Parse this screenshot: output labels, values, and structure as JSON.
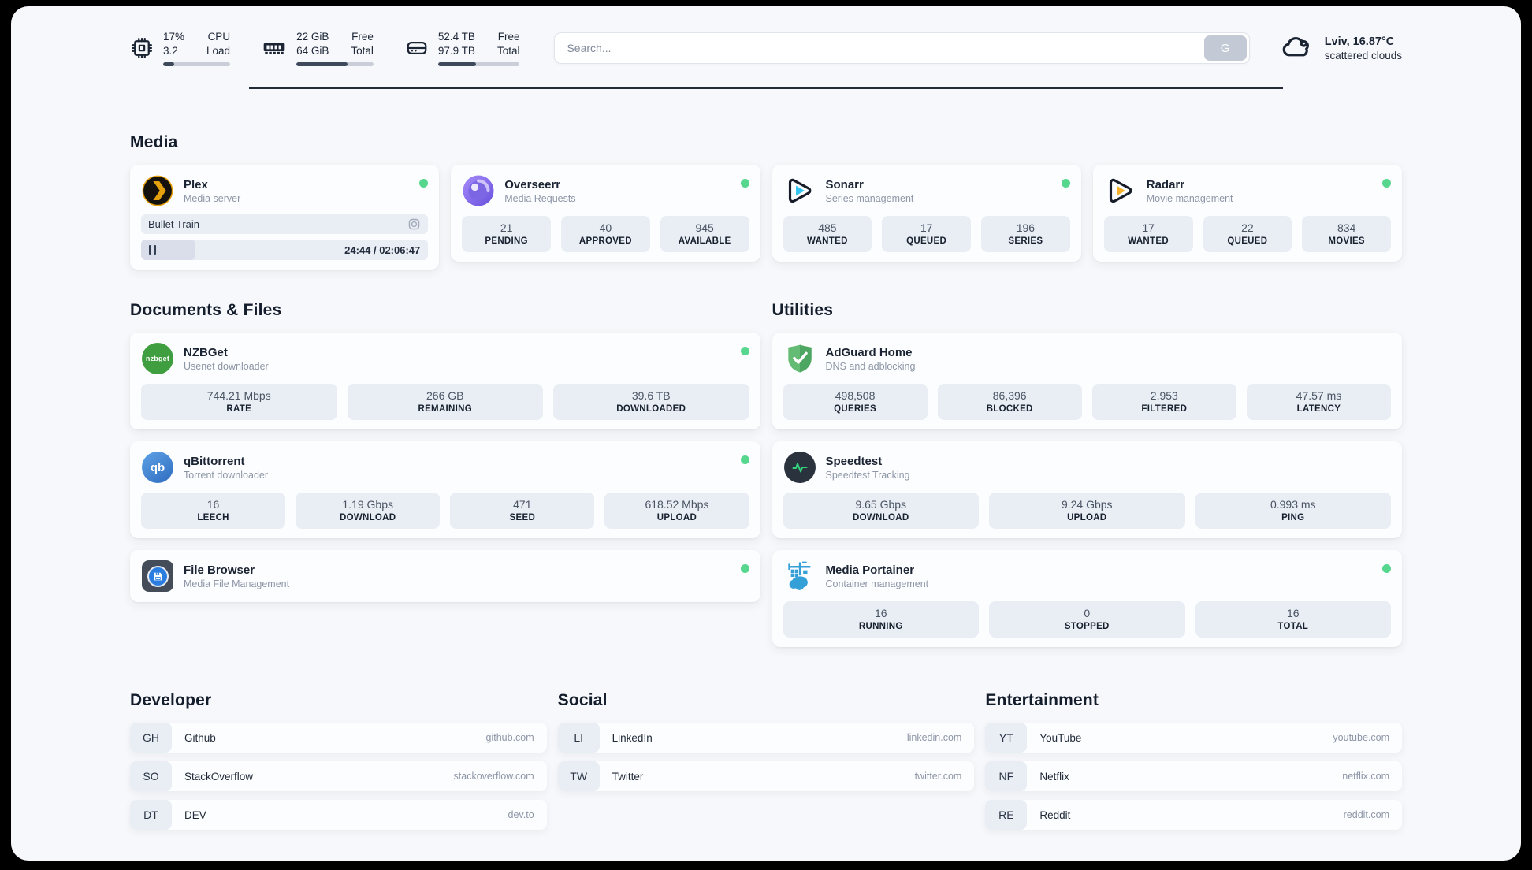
{
  "colors": {
    "status_online": "#57d78e",
    "progress_dark": "#3e4a5b",
    "accent_amber": "#e5a00d"
  },
  "header": {
    "metrics": [
      {
        "icon": "cpu-icon",
        "left_top": "17%",
        "left_bottom": "3.2",
        "right_top": "CPU",
        "right_bottom": "Load",
        "progress": 17
      },
      {
        "icon": "ram-icon",
        "left_top": "22 GiB",
        "left_bottom": "64 GiB",
        "right_top": "Free",
        "right_bottom": "Total",
        "progress": 66
      },
      {
        "icon": "disk-icon",
        "left_top": "52.4 TB",
        "left_bottom": "97.9 TB",
        "right_top": "Free",
        "right_bottom": "Total",
        "progress": 46
      }
    ],
    "search": {
      "placeholder": "Search...",
      "button_label": "G"
    },
    "weather": {
      "icon": "cloud-icon",
      "location": "Lviv, 16.87°C",
      "condition": "scattered clouds"
    }
  },
  "sections": {
    "media": {
      "title": "Media",
      "cards": [
        {
          "name": "Plex",
          "description": "Media server",
          "icon": "plex-icon",
          "status": "online",
          "media_player": {
            "now_playing": "Bullet Train",
            "time_display": "24:44 / 02:06:47",
            "progress_percent": 19
          },
          "stats": []
        },
        {
          "name": "Overseerr",
          "description": "Media Requests",
          "icon": "overseerr-icon",
          "status": "online",
          "stats": [
            {
              "value": "21",
              "label": "PENDING"
            },
            {
              "value": "40",
              "label": "APPROVED"
            },
            {
              "value": "945",
              "label": "AVAILABLE"
            }
          ]
        },
        {
          "name": "Sonarr",
          "description": "Series management",
          "icon": "sonarr-icon",
          "status": "online",
          "stats": [
            {
              "value": "485",
              "label": "WANTED"
            },
            {
              "value": "17",
              "label": "QUEUED"
            },
            {
              "value": "196",
              "label": "SERIES"
            }
          ]
        },
        {
          "name": "Radarr",
          "description": "Movie management",
          "icon": "radarr-icon",
          "status": "online",
          "stats": [
            {
              "value": "17",
              "label": "WANTED"
            },
            {
              "value": "22",
              "label": "QUEUED"
            },
            {
              "value": "834",
              "label": "MOVIES"
            }
          ]
        }
      ]
    },
    "documents": {
      "title": "Documents & Files",
      "cards": [
        {
          "name": "NZBGet",
          "description": "Usenet downloader",
          "icon": "nzbget-icon",
          "status": "online",
          "stats": [
            {
              "value": "744.21 Mbps",
              "label": "RATE"
            },
            {
              "value": "266 GB",
              "label": "REMAINING"
            },
            {
              "value": "39.6 TB",
              "label": "DOWNLOADED"
            }
          ]
        },
        {
          "name": "qBittorrent",
          "description": "Torrent downloader",
          "icon": "qbittorrent-icon",
          "status": "online",
          "stats": [
            {
              "value": "16",
              "label": "LEECH"
            },
            {
              "value": "1.19 Gbps",
              "label": "DOWNLOAD"
            },
            {
              "value": "471",
              "label": "SEED"
            },
            {
              "value": "618.52 Mbps",
              "label": "UPLOAD"
            }
          ]
        },
        {
          "name": "File Browser",
          "description": "Media File Management",
          "icon": "filebrowser-icon",
          "status": "online",
          "stats": []
        }
      ]
    },
    "utilities": {
      "title": "Utilities",
      "cards": [
        {
          "name": "AdGuard Home",
          "description": "DNS and adblocking",
          "icon": "adguard-icon",
          "status": "none",
          "stats": [
            {
              "value": "498,508",
              "label": "QUERIES"
            },
            {
              "value": "86,396",
              "label": "BLOCKED"
            },
            {
              "value": "2,953",
              "label": "FILTERED"
            },
            {
              "value": "47.57 ms",
              "label": "LATENCY"
            }
          ]
        },
        {
          "name": "Speedtest",
          "description": "Speedtest Tracking",
          "icon": "speedtest-icon",
          "status": "none",
          "stats": [
            {
              "value": "9.65 Gbps",
              "label": "DOWNLOAD"
            },
            {
              "value": "9.24 Gbps",
              "label": "UPLOAD"
            },
            {
              "value": "0.993 ms",
              "label": "PING"
            }
          ]
        },
        {
          "name": "Media Portainer",
          "description": "Container management",
          "icon": "portainer-icon",
          "status": "online",
          "stats": [
            {
              "value": "16",
              "label": "RUNNING"
            },
            {
              "value": "0",
              "label": "STOPPED"
            },
            {
              "value": "16",
              "label": "TOTAL"
            }
          ]
        }
      ]
    }
  },
  "bookmarks": [
    {
      "title": "Developer",
      "links": [
        {
          "abbr": "GH",
          "name": "Github",
          "url": "github.com"
        },
        {
          "abbr": "SO",
          "name": "StackOverflow",
          "url": "stackoverflow.com"
        },
        {
          "abbr": "DT",
          "name": "DEV",
          "url": "dev.to"
        }
      ]
    },
    {
      "title": "Social",
      "links": [
        {
          "abbr": "LI",
          "name": "LinkedIn",
          "url": "linkedin.com"
        },
        {
          "abbr": "TW",
          "name": "Twitter",
          "url": "twitter.com"
        }
      ]
    },
    {
      "title": "Entertainment",
      "links": [
        {
          "abbr": "YT",
          "name": "YouTube",
          "url": "youtube.com"
        },
        {
          "abbr": "NF",
          "name": "Netflix",
          "url": "netflix.com"
        },
        {
          "abbr": "RE",
          "name": "Reddit",
          "url": "reddit.com"
        }
      ]
    }
  ]
}
